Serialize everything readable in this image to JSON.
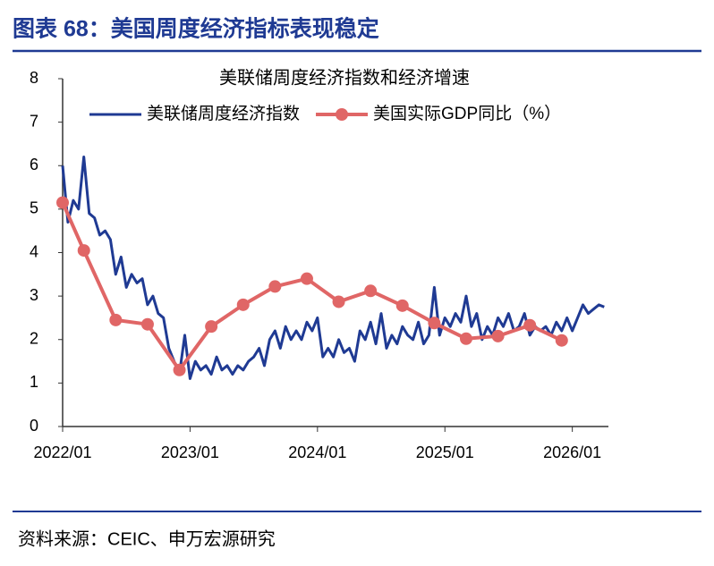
{
  "header": {
    "title": "图表 68：美国周度经济指标表现稳定"
  },
  "chart_data": {
    "type": "line",
    "title": "美联储周度经济指数和经济增速",
    "xlim": [
      0,
      51.4
    ],
    "xticks": [
      {
        "value": 0,
        "label": "2022/01"
      },
      {
        "value": 12,
        "label": "2023/01"
      },
      {
        "value": 24,
        "label": "2024/01"
      },
      {
        "value": 36,
        "label": "2025/01"
      },
      {
        "value": 48,
        "label": "2026/01"
      }
    ],
    "ylim": [
      0,
      8
    ],
    "yticks": [
      0,
      1,
      2,
      3,
      4,
      5,
      6,
      7,
      8
    ],
    "legend": "top-left",
    "series": [
      {
        "name": "美联储周度经济指数",
        "color": "#1f3a93",
        "markers": false,
        "x": [
          0,
          0.5,
          1,
          1.5,
          2,
          2.5,
          3,
          3.5,
          4,
          4.5,
          5,
          5.5,
          6,
          6.5,
          7,
          7.5,
          8,
          8.5,
          9,
          9.5,
          10,
          10.5,
          11,
          11.5,
          12,
          12.5,
          13,
          13.5,
          14,
          14.5,
          15,
          15.5,
          16,
          16.5,
          17,
          17.5,
          18,
          18.5,
          19,
          19.5,
          20,
          20.5,
          21,
          21.5,
          22,
          22.5,
          23,
          23.5,
          24,
          24.5,
          25,
          25.5,
          26,
          26.5,
          27,
          27.5,
          28,
          28.5,
          29,
          29.5,
          30,
          30.5,
          31,
          31.5,
          32,
          32.5,
          33,
          33.5,
          34,
          34.5,
          35,
          35.5,
          36,
          36.5,
          37,
          37.5,
          38,
          38.5,
          39,
          39.5,
          40,
          40.5,
          41,
          41.5,
          42,
          42.5,
          43,
          43.5,
          44,
          44.5,
          45,
          45.5,
          46,
          46.5,
          47,
          47.5,
          48,
          48.5,
          49,
          49.5,
          50,
          50.5,
          51
        ],
        "values": [
          6.0,
          4.7,
          5.2,
          5.0,
          6.2,
          4.9,
          4.8,
          4.4,
          4.5,
          4.3,
          3.5,
          3.9,
          3.2,
          3.5,
          3.3,
          3.4,
          2.8,
          3.0,
          2.6,
          2.5,
          1.8,
          1.5,
          1.2,
          2.1,
          1.1,
          1.5,
          1.3,
          1.4,
          1.2,
          1.6,
          1.3,
          1.4,
          1.2,
          1.4,
          1.3,
          1.5,
          1.6,
          1.8,
          1.4,
          2.0,
          2.2,
          1.8,
          2.3,
          2.0,
          2.2,
          2.0,
          2.4,
          2.2,
          2.5,
          1.6,
          1.8,
          1.6,
          2.0,
          1.7,
          1.8,
          1.5,
          2.2,
          2.0,
          2.4,
          1.9,
          2.6,
          1.8,
          2.1,
          1.9,
          2.3,
          2.1,
          2.0,
          2.4,
          1.9,
          2.1,
          3.2,
          2.1,
          2.5,
          2.3,
          2.6,
          2.4,
          3.0,
          2.3,
          2.6,
          2.0,
          2.3,
          2.1,
          2.5,
          2.3,
          2.6,
          2.2,
          2.3,
          2.6,
          2.1,
          2.3,
          2.2,
          2.3,
          2.1,
          2.4,
          2.2,
          2.5,
          2.2,
          2.5,
          2.8,
          2.6,
          2.7,
          2.8,
          2.75
        ]
      },
      {
        "name": "美国实际GDP同比（%）",
        "color": "#e06666",
        "markers": true,
        "x": [
          0,
          2,
          5,
          8,
          11,
          14,
          17,
          20,
          23,
          26,
          29,
          32,
          35,
          38,
          41,
          44,
          47
        ],
        "values": [
          5.15,
          4.05,
          2.45,
          2.35,
          1.3,
          2.3,
          2.8,
          3.22,
          3.4,
          2.87,
          3.12,
          2.78,
          2.38,
          2.02,
          2.08,
          2.33,
          1.98
        ]
      }
    ]
  },
  "footer": {
    "source": "资料来源：CEIC、申万宏源研究"
  }
}
